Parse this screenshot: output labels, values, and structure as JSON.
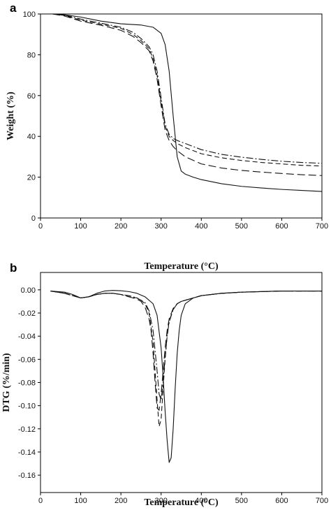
{
  "chart_data": [
    {
      "type": "line",
      "panel": "a",
      "xlabel": "Temperature (°C)",
      "ylabel": "Weight (%)",
      "xlim": [
        0,
        700
      ],
      "ylim": [
        0,
        100
      ],
      "xticks": [
        0,
        100,
        200,
        300,
        400,
        500,
        600,
        700
      ],
      "yticks": [
        0,
        20,
        40,
        60,
        80,
        100
      ],
      "legend": "none",
      "grid": false,
      "series": [
        {
          "style": "solid",
          "x": [
            30,
            60,
            100,
            150,
            200,
            250,
            280,
            300,
            310,
            320,
            330,
            340,
            350,
            360,
            380,
            400,
            450,
            500,
            550,
            600,
            650,
            700
          ],
          "y": [
            100,
            99.6,
            98.5,
            96.5,
            95.2,
            94.6,
            93.5,
            90.5,
            85,
            72,
            50,
            30,
            23,
            21.5,
            20,
            18.8,
            16.8,
            15.5,
            14.7,
            14,
            13.5,
            13
          ]
        },
        {
          "style": "long-dash",
          "x": [
            30,
            60,
            100,
            150,
            200,
            230,
            250,
            270,
            280,
            290,
            300,
            310,
            320,
            330,
            340,
            360,
            400,
            450,
            500,
            550,
            600,
            650,
            700
          ],
          "y": [
            100,
            99,
            96.5,
            94.5,
            92,
            89,
            86,
            82,
            77,
            68,
            55,
            43,
            38,
            35,
            33,
            30,
            26.5,
            24.5,
            23.3,
            22.5,
            21.8,
            21.2,
            20.8
          ]
        },
        {
          "style": "dash",
          "x": [
            30,
            60,
            100,
            150,
            200,
            230,
            250,
            270,
            280,
            290,
            300,
            310,
            320,
            330,
            340,
            360,
            400,
            450,
            500,
            550,
            600,
            650,
            700
          ],
          "y": [
            100,
            99.3,
            97,
            95,
            93,
            90,
            87,
            83,
            78,
            70,
            57,
            45,
            40,
            38,
            36.5,
            34.5,
            31.5,
            29.5,
            28.2,
            27.2,
            26.5,
            25.8,
            25.5
          ]
        },
        {
          "style": "dash-dot",
          "x": [
            30,
            60,
            100,
            150,
            200,
            230,
            250,
            270,
            280,
            290,
            300,
            310,
            320,
            330,
            340,
            360,
            400,
            450,
            500,
            550,
            600,
            650,
            700
          ],
          "y": [
            100,
            99.5,
            97.5,
            95.5,
            93.5,
            91,
            88,
            84,
            80,
            72,
            59,
            46,
            41,
            39,
            38,
            36.5,
            33.5,
            31.2,
            29.8,
            28.7,
            27.8,
            27.2,
            26.8
          ]
        }
      ]
    },
    {
      "type": "line",
      "panel": "b",
      "xlabel": "Temperature (°C)",
      "ylabel": "DTG (%/min)",
      "xlim": [
        0,
        700
      ],
      "ylim": [
        -0.175,
        0.015
      ],
      "xticks": [
        0,
        100,
        200,
        300,
        400,
        500,
        600,
        700
      ],
      "yticks": [
        0.0,
        -0.02,
        -0.04,
        -0.06,
        -0.08,
        -0.1,
        -0.12,
        -0.14,
        -0.16
      ],
      "ytick_labels": [
        "0.00",
        "-0.02",
        "-0.04",
        "-0.06",
        "-0.08",
        "-0.10",
        "-0.12",
        "-0.14",
        "-0.16"
      ],
      "legend": "none",
      "grid": false,
      "series": [
        {
          "style": "solid",
          "x": [
            25,
            60,
            80,
            100,
            120,
            140,
            160,
            180,
            200,
            220,
            240,
            260,
            280,
            290,
            300,
            305,
            310,
            315,
            320,
            325,
            330,
            335,
            340,
            345,
            350,
            360,
            380,
            400,
            450,
            500,
            600,
            700
          ],
          "y": [
            -0.001,
            -0.002,
            -0.004,
            -0.007,
            -0.006,
            -0.003,
            -0.001,
            -0.0005,
            -0.0008,
            -0.0015,
            -0.003,
            -0.006,
            -0.012,
            -0.022,
            -0.05,
            -0.075,
            -0.105,
            -0.13,
            -0.149,
            -0.145,
            -0.12,
            -0.085,
            -0.055,
            -0.035,
            -0.022,
            -0.012,
            -0.007,
            -0.005,
            -0.003,
            -0.002,
            -0.001,
            -0.001
          ]
        },
        {
          "style": "long-dash",
          "x": [
            25,
            60,
            80,
            100,
            120,
            140,
            160,
            180,
            200,
            220,
            240,
            250,
            260,
            270,
            275,
            280,
            285,
            290,
            295,
            300,
            305,
            310,
            315,
            320,
            330,
            340,
            350,
            360,
            380,
            400,
            450,
            500,
            600,
            700
          ],
          "y": [
            -0.001,
            -0.003,
            -0.005,
            -0.007,
            -0.006,
            -0.004,
            -0.003,
            -0.003,
            -0.004,
            -0.006,
            -0.008,
            -0.01,
            -0.015,
            -0.025,
            -0.035,
            -0.055,
            -0.08,
            -0.102,
            -0.104,
            -0.09,
            -0.07,
            -0.05,
            -0.035,
            -0.025,
            -0.016,
            -0.012,
            -0.01,
            -0.009,
            -0.007,
            -0.005,
            -0.003,
            -0.002,
            -0.001,
            -0.001
          ]
        },
        {
          "style": "dash",
          "x": [
            25,
            60,
            80,
            100,
            120,
            140,
            160,
            180,
            200,
            220,
            240,
            250,
            260,
            270,
            280,
            285,
            290,
            295,
            300,
            305,
            310,
            315,
            320,
            330,
            340,
            350,
            360,
            380,
            400,
            450,
            500,
            600,
            700
          ],
          "y": [
            -0.001,
            -0.003,
            -0.005,
            -0.007,
            -0.006,
            -0.004,
            -0.003,
            -0.003,
            -0.004,
            -0.006,
            -0.007,
            -0.009,
            -0.012,
            -0.02,
            -0.045,
            -0.07,
            -0.095,
            -0.118,
            -0.112,
            -0.085,
            -0.06,
            -0.04,
            -0.027,
            -0.017,
            -0.012,
            -0.01,
            -0.009,
            -0.007,
            -0.005,
            -0.003,
            -0.002,
            -0.001,
            -0.001
          ]
        },
        {
          "style": "dash-dot",
          "x": [
            25,
            60,
            80,
            100,
            120,
            140,
            160,
            180,
            200,
            220,
            240,
            260,
            270,
            280,
            290,
            295,
            300,
            305,
            310,
            315,
            320,
            330,
            340,
            350,
            360,
            380,
            400,
            450,
            500,
            600,
            700
          ],
          "y": [
            -0.001,
            -0.003,
            -0.005,
            -0.007,
            -0.006,
            -0.004,
            -0.003,
            -0.003,
            -0.004,
            -0.005,
            -0.007,
            -0.011,
            -0.018,
            -0.035,
            -0.07,
            -0.09,
            -0.095,
            -0.08,
            -0.058,
            -0.04,
            -0.028,
            -0.017,
            -0.012,
            -0.01,
            -0.009,
            -0.007,
            -0.005,
            -0.003,
            -0.002,
            -0.001,
            -0.001
          ]
        }
      ]
    }
  ]
}
